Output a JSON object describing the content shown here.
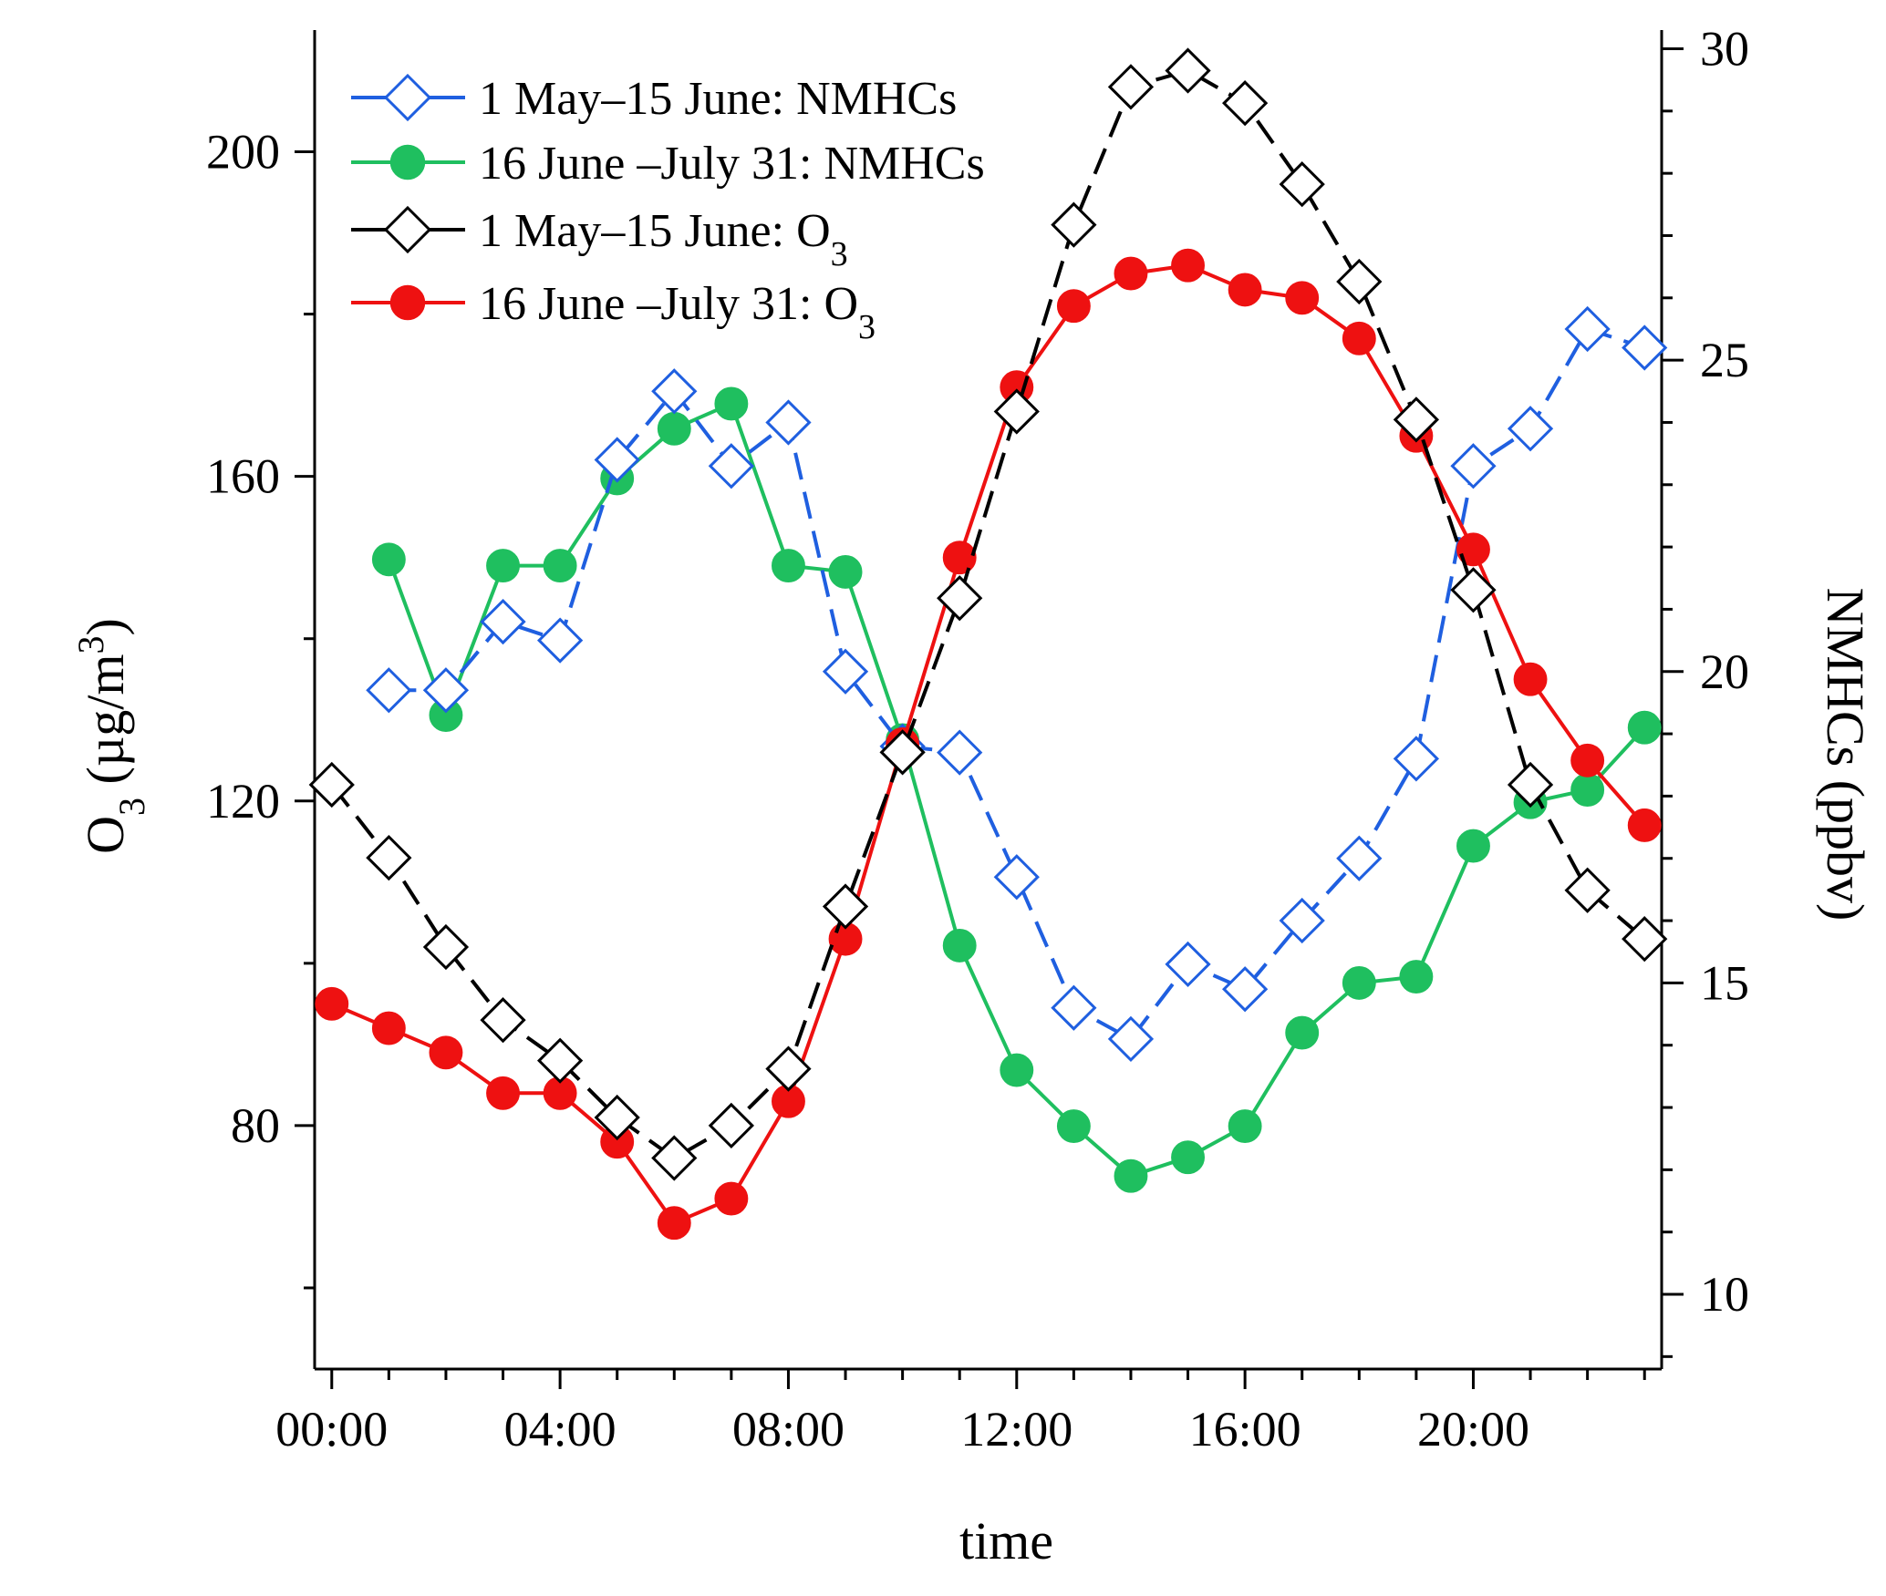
{
  "chart_data": {
    "type": "line",
    "title": "",
    "xlabel": "time",
    "ylabel_left": {
      "base": "O",
      "sub": "3",
      "unit_pre": " (µg/m",
      "unit_sup": "3",
      "unit_post": ")"
    },
    "ylabel_right": "NMHCs (ppbv)",
    "x_hours": [
      0,
      1,
      2,
      3,
      4,
      5,
      6,
      7,
      8,
      9,
      10,
      11,
      12,
      13,
      14,
      15,
      16,
      17,
      18,
      19,
      20,
      21,
      22,
      23
    ],
    "x_ticks": [
      0,
      4,
      8,
      12,
      16,
      20
    ],
    "x_tick_labels": [
      "00:00",
      "04:00",
      "08:00",
      "12:00",
      "16:00",
      "20:00"
    ],
    "xlim": [
      -0.3,
      23.3
    ],
    "ylim_left": [
      50,
      215
    ],
    "yticks_left": [
      80,
      120,
      160,
      200
    ],
    "yticks_left_minor": [
      60,
      100,
      140,
      180,
      220
    ],
    "ylim_right": [
      8.8,
      30.3
    ],
    "yticks_right": [
      10,
      15,
      20,
      25,
      30
    ],
    "yticks_right_minor_step": 1,
    "series": [
      {
        "name": "1 May–15 June: NMHCs",
        "legend": {
          "main": "1 May–15 June: NMHCs",
          "sub": ""
        },
        "axis": "right",
        "color": "#1f5fe0",
        "marker": "diamond-open",
        "dash": "dashed",
        "x": [
          1,
          2,
          3,
          4,
          5,
          6,
          7,
          8,
          9,
          10,
          11,
          12,
          13,
          14,
          15,
          16,
          17,
          18,
          19,
          20,
          21,
          22,
          23
        ],
        "values": [
          19.7,
          19.7,
          20.8,
          20.5,
          23.4,
          24.5,
          23.3,
          24.0,
          20.0,
          18.8,
          18.7,
          16.7,
          14.6,
          14.1,
          15.3,
          14.9,
          16.0,
          17.0,
          18.6,
          23.3,
          23.9,
          25.5,
          25.2
        ]
      },
      {
        "name": "16 June –July 31: NMHCs",
        "legend": {
          "main": "16 June –July 31: NMHCs",
          "sub": ""
        },
        "axis": "right",
        "color": "#1fbf5f",
        "marker": "circle-filled",
        "dash": "solid",
        "x": [
          1,
          2,
          3,
          4,
          5,
          6,
          7,
          8,
          9,
          10,
          11,
          12,
          13,
          14,
          15,
          16,
          17,
          18,
          19,
          20,
          21,
          22,
          23
        ],
        "values": [
          21.8,
          19.3,
          21.7,
          21.7,
          23.1,
          23.9,
          24.3,
          21.7,
          21.6,
          18.9,
          15.6,
          13.6,
          12.7,
          11.9,
          12.2,
          12.7,
          14.2,
          15.0,
          15.1,
          17.2,
          17.9,
          18.1,
          19.1
        ]
      },
      {
        "name": "1 May–15 June: O3",
        "legend": {
          "main": "1 May–15 June: O",
          "sub": "3"
        },
        "axis": "left",
        "color": "#000000",
        "marker": "diamond-open",
        "dash": "dashed",
        "x": [
          0,
          1,
          2,
          3,
          4,
          5,
          6,
          7,
          8,
          9,
          10,
          11,
          12,
          13,
          14,
          15,
          16,
          17,
          18,
          19,
          20,
          21,
          22,
          23
        ],
        "values": [
          122,
          113,
          102,
          93,
          88,
          81,
          76,
          80,
          87,
          107,
          126,
          145,
          168,
          191,
          208,
          210,
          206,
          196,
          184,
          167,
          146,
          122,
          109,
          103
        ]
      },
      {
        "name": "16 June –July 31: O3",
        "legend": {
          "main": "16 June –July 31: O",
          "sub": "3"
        },
        "axis": "left",
        "color": "#ee1111",
        "marker": "circle-filled",
        "dash": "solid",
        "x": [
          0,
          1,
          2,
          3,
          4,
          5,
          6,
          7,
          8,
          9,
          10,
          11,
          12,
          13,
          14,
          15,
          16,
          17,
          18,
          19,
          20,
          21,
          22,
          23
        ],
        "values": [
          95,
          92,
          89,
          84,
          84,
          78,
          68,
          71,
          83,
          103,
          127,
          150,
          171,
          181,
          185,
          186,
          183,
          182,
          177,
          165,
          151,
          135,
          125,
          117
        ]
      }
    ],
    "legend_position": "top-left",
    "grid": false
  }
}
